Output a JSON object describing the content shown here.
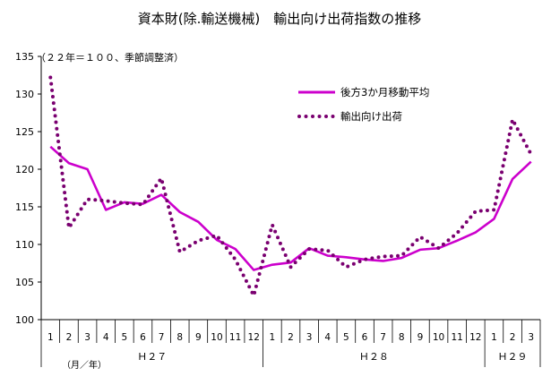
{
  "chart_data": {
    "type": "line",
    "title": "資本財(除.輸送機械)　輸出向け出荷指数の推移",
    "subtitle": "（２２年＝１００、季節調整済）",
    "unit_note": "（月／年）",
    "ylim": [
      100,
      135
    ],
    "yticks": [
      100,
      105,
      110,
      115,
      120,
      125,
      130,
      135
    ],
    "categories": [
      "1",
      "2",
      "3",
      "4",
      "5",
      "6",
      "7",
      "8",
      "9",
      "10",
      "11",
      "12",
      "1",
      "2",
      "3",
      "4",
      "5",
      "6",
      "7",
      "8",
      "9",
      "10",
      "11",
      "12",
      "1",
      "2",
      "3"
    ],
    "year_groups": [
      {
        "label": "Ｈ２７",
        "start": 0,
        "end": 11
      },
      {
        "label": "Ｈ２８",
        "start": 12,
        "end": 23
      },
      {
        "label": "Ｈ２９",
        "start": 24,
        "end": 26
      }
    ],
    "legend_position": "top-right",
    "grid": false,
    "series": [
      {
        "name": "後方3か月移動平均",
        "style": "solid",
        "color": "#cc00cc",
        "values": [
          123.0,
          120.8,
          120.0,
          114.6,
          115.6,
          115.4,
          116.6,
          114.3,
          113.0,
          110.6,
          109.4,
          106.6,
          107.3,
          107.6,
          109.5,
          108.5,
          108.3,
          108.0,
          107.8,
          108.2,
          109.3,
          109.5,
          110.5,
          111.6,
          113.4,
          118.7,
          121.0
        ]
      },
      {
        "name": "輸出向け出荷",
        "style": "dotted",
        "color": "#7a0070",
        "values": [
          132.2,
          112.2,
          116.0,
          115.8,
          115.5,
          115.3,
          118.8,
          109.0,
          110.5,
          111.2,
          108.0,
          103.2,
          112.6,
          107.0,
          109.4,
          109.2,
          107.0,
          108.0,
          108.4,
          108.5,
          111.0,
          109.5,
          111.5,
          114.4,
          114.6,
          126.6,
          122.0
        ]
      }
    ]
  }
}
